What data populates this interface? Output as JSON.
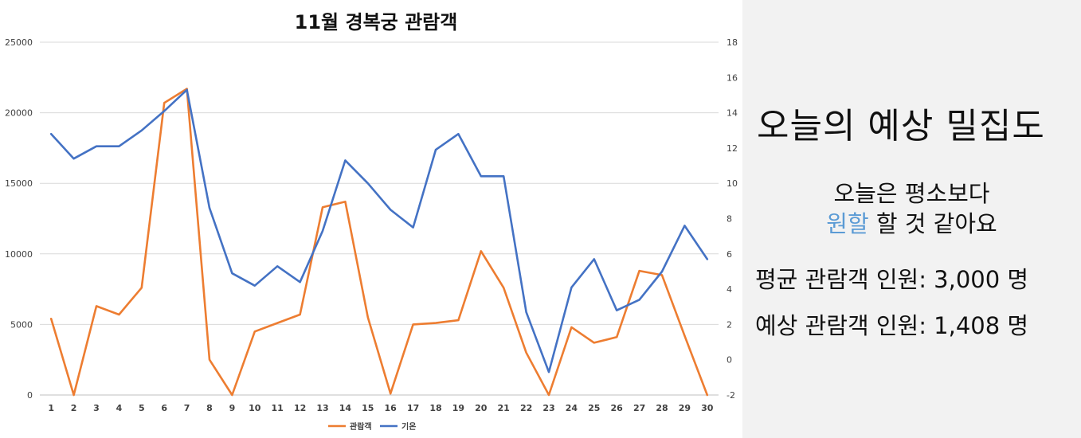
{
  "chart_data": {
    "type": "line",
    "title": "11월 경복궁 관람객",
    "categories": [
      "1",
      "2",
      "3",
      "4",
      "5",
      "6",
      "7",
      "8",
      "9",
      "10",
      "11",
      "12",
      "13",
      "14",
      "15",
      "16",
      "17",
      "18",
      "19",
      "20",
      "21",
      "22",
      "23",
      "24",
      "25",
      "26",
      "27",
      "28",
      "29",
      "30"
    ],
    "series": [
      {
        "name": "관람객",
        "axis": "left",
        "color": "#ed7d31",
        "values": [
          5400,
          0,
          6300,
          5700,
          7600,
          20700,
          21700,
          2500,
          0,
          4500,
          5100,
          5700,
          13300,
          13700,
          5500,
          100,
          5000,
          5100,
          5300,
          10200,
          7600,
          3000,
          0,
          4800,
          3700,
          4100,
          8800,
          8500,
          4200,
          0
        ]
      },
      {
        "name": "기온",
        "axis": "right",
        "color": "#4472c4",
        "values": [
          12.8,
          11.4,
          12.1,
          12.1,
          13.0,
          14.1,
          15.3,
          8.6,
          4.9,
          4.2,
          5.3,
          4.4,
          7.3,
          11.3,
          10.0,
          8.5,
          7.5,
          11.9,
          12.8,
          10.4,
          10.4,
          2.7,
          -0.7,
          4.1,
          5.7,
          2.8,
          3.4,
          5.0,
          7.6,
          5.7
        ]
      }
    ],
    "y_left": {
      "min": 0,
      "max": 25000,
      "ticks": [
        "0",
        "5000",
        "10000",
        "15000",
        "20000",
        "25000"
      ]
    },
    "y_right": {
      "min": -2,
      "max": 18,
      "ticks": [
        "-2",
        "0",
        "2",
        "4",
        "6",
        "8",
        "10",
        "12",
        "14",
        "16",
        "18"
      ]
    },
    "grid": true,
    "legend": "bottom-center",
    "legend_items": [
      "관람객",
      "기온"
    ]
  },
  "side": {
    "title": "오늘의 예상 밀집도",
    "line1": "오늘은 평소보다",
    "line2_accent": "원할",
    "line2_rest": " 할 것 같아요",
    "avg_text": "평균 관람객 인원: 3,000 명",
    "expected_text": "예상 관람객 인원: 1,408 명",
    "accent_color": "#5b9bd5"
  }
}
